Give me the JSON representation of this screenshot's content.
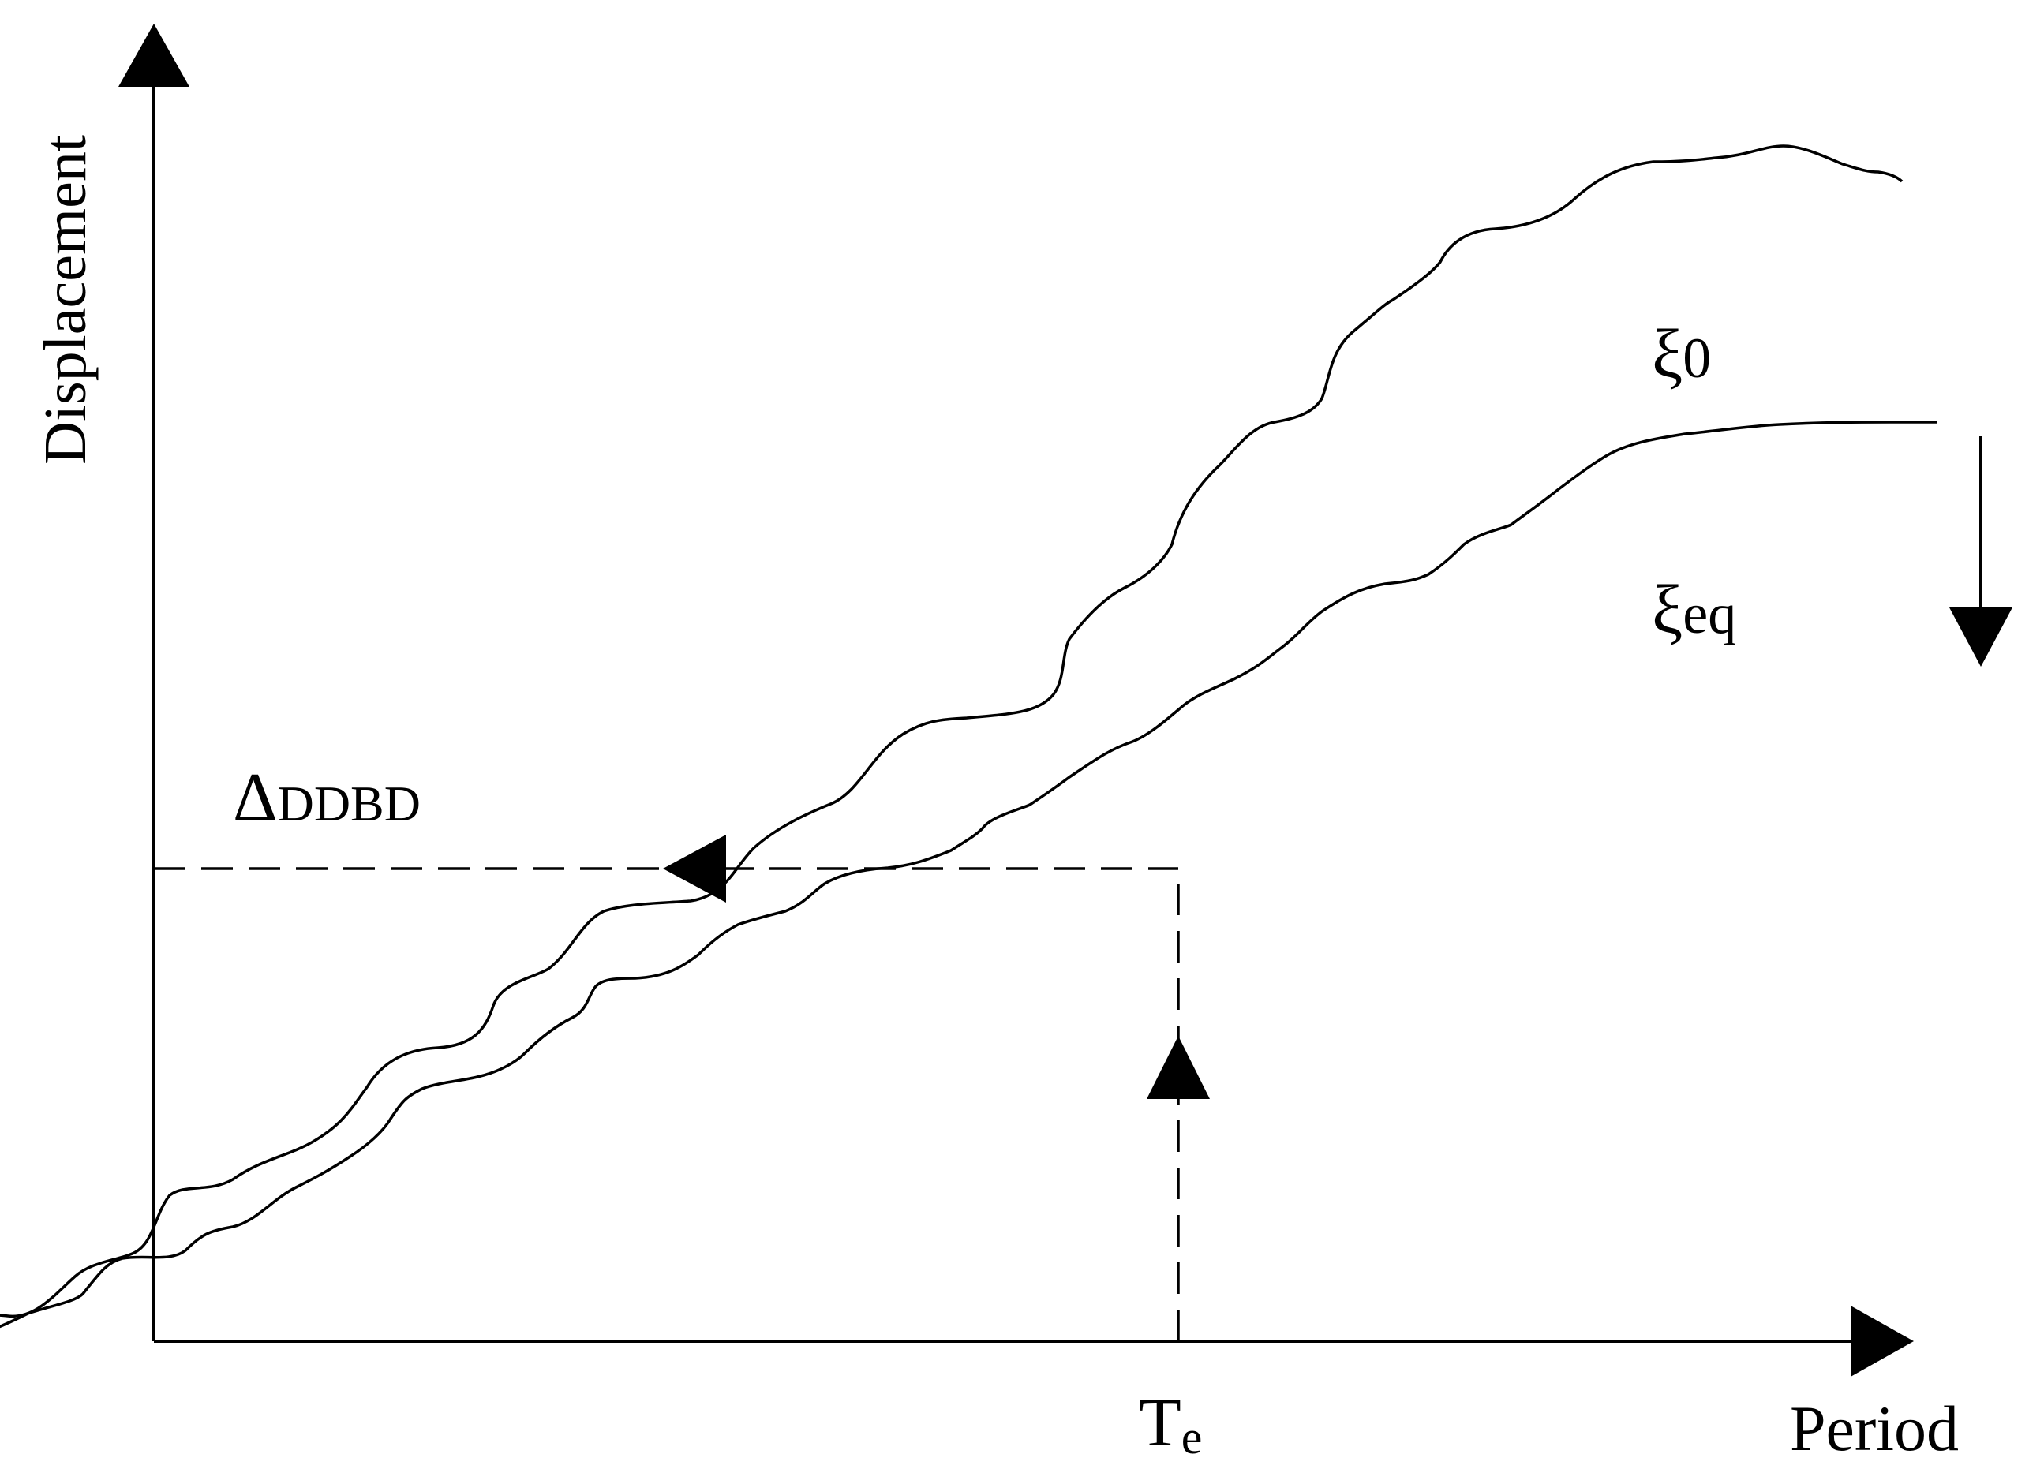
{
  "diagram": {
    "labels": {
      "y_axis": "Displacement",
      "x_axis": "Period",
      "curve_xi0_symbol": "ξ",
      "curve_xi0_sub": "0",
      "curve_xieq_symbol": "ξ",
      "curve_xieq_sub": "eq",
      "delta_symbol": "Δ",
      "delta_sub": "DDBD",
      "te_symbol": "T",
      "te_sub": "e"
    },
    "colors": {
      "line": "#000000",
      "background": "#ffffff"
    }
  }
}
